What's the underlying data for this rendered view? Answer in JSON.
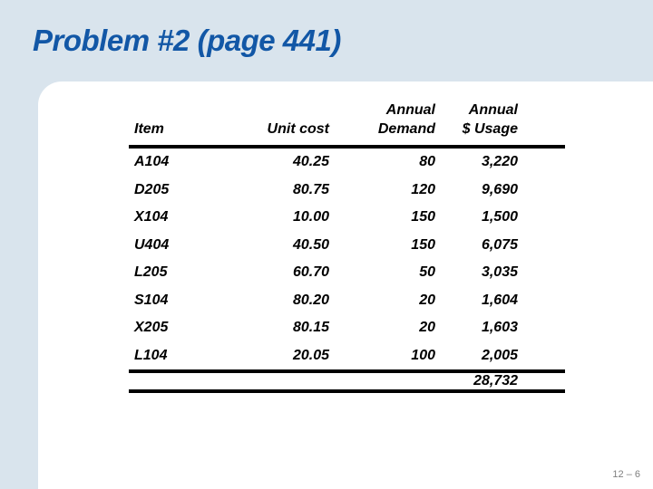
{
  "slide": {
    "title": "Problem #2 (page 441)",
    "page_number": "12 – 6"
  },
  "table": {
    "header": {
      "col_item": "Item",
      "col_unit_cost": "Unit cost",
      "col_demand_top": "Annual",
      "col_demand": "Demand",
      "col_usage_top": "Annual",
      "col_usage": "$ Usage"
    },
    "rows": [
      {
        "item": "A104",
        "unit_cost": "40.25",
        "annual_demand": "80",
        "annual_usage": "3,220"
      },
      {
        "item": "D205",
        "unit_cost": "80.75",
        "annual_demand": "120",
        "annual_usage": "9,690"
      },
      {
        "item": "X104",
        "unit_cost": "10.00",
        "annual_demand": "150",
        "annual_usage": "1,500"
      },
      {
        "item": "U404",
        "unit_cost": "40.50",
        "annual_demand": "150",
        "annual_usage": "6,075"
      },
      {
        "item": "L205",
        "unit_cost": "60.70",
        "annual_demand": "50",
        "annual_usage": "3,035"
      },
      {
        "item": "S104",
        "unit_cost": "80.20",
        "annual_demand": "20",
        "annual_usage": "1,604"
      },
      {
        "item": "X205",
        "unit_cost": "80.15",
        "annual_demand": "20",
        "annual_usage": "1,603"
      },
      {
        "item": "L104",
        "unit_cost": "20.05",
        "annual_demand": "100",
        "annual_usage": "2,005"
      }
    ],
    "total_usage": "28,732"
  },
  "colors": {
    "background": "#d9e4ed",
    "panel": "#ffffff",
    "title": "#1257a6",
    "table_text": "#000000",
    "rule": "#000000",
    "page_number_text": "#7f7f7f"
  }
}
